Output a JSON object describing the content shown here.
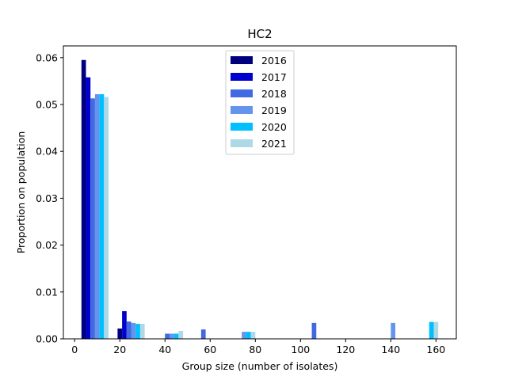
{
  "chart_data": {
    "type": "bar",
    "title": "HC2",
    "xlabel": "Group size (number of isolates)",
    "ylabel": "Proportion on population",
    "xlim": [
      -5,
      169
    ],
    "ylim": [
      0,
      0.0625
    ],
    "xticks": [
      0,
      20,
      40,
      60,
      80,
      100,
      120,
      140,
      160
    ],
    "yticks": [
      0.0,
      0.01,
      0.02,
      0.03,
      0.04,
      0.05,
      0.06
    ],
    "xtick_labels": [
      "0",
      "20",
      "40",
      "60",
      "80",
      "100",
      "120",
      "140",
      "160"
    ],
    "ytick_labels": [
      "0.00",
      "0.01",
      "0.02",
      "0.03",
      "0.04",
      "0.05",
      "0.06"
    ],
    "legend_position": "upper center",
    "series": [
      {
        "name": "2016",
        "color": "#00007f",
        "points": [
          {
            "x": 4,
            "y": 0.0595
          },
          {
            "x": 20,
            "y": 0.0022
          }
        ]
      },
      {
        "name": "2017",
        "color": "#0000cd",
        "points": [
          {
            "x": 6,
            "y": 0.0558
          },
          {
            "x": 22,
            "y": 0.0059
          }
        ]
      },
      {
        "name": "2018",
        "color": "#4169e1",
        "points": [
          {
            "x": 8,
            "y": 0.0513
          },
          {
            "x": 24,
            "y": 0.0037
          },
          {
            "x": 41,
            "y": 0.0011
          },
          {
            "x": 57,
            "y": 0.002
          },
          {
            "x": 106,
            "y": 0.0034
          }
        ]
      },
      {
        "name": "2019",
        "color": "#6495ed",
        "points": [
          {
            "x": 10,
            "y": 0.0522
          },
          {
            "x": 26,
            "y": 0.0034
          },
          {
            "x": 43,
            "y": 0.0011
          },
          {
            "x": 75,
            "y": 0.0015
          },
          {
            "x": 141,
            "y": 0.0034
          }
        ]
      },
      {
        "name": "2020",
        "color": "#00bfff",
        "points": [
          {
            "x": 12,
            "y": 0.0522
          },
          {
            "x": 28,
            "y": 0.0032
          },
          {
            "x": 45,
            "y": 0.0011
          },
          {
            "x": 77,
            "y": 0.0015
          },
          {
            "x": 158,
            "y": 0.0036
          }
        ]
      },
      {
        "name": "2021",
        "color": "#add8e6",
        "points": [
          {
            "x": 14,
            "y": 0.0516
          },
          {
            "x": 30,
            "y": 0.0032
          },
          {
            "x": 47,
            "y": 0.0017
          },
          {
            "x": 79,
            "y": 0.0015
          },
          {
            "x": 160,
            "y": 0.0036
          }
        ]
      }
    ]
  }
}
